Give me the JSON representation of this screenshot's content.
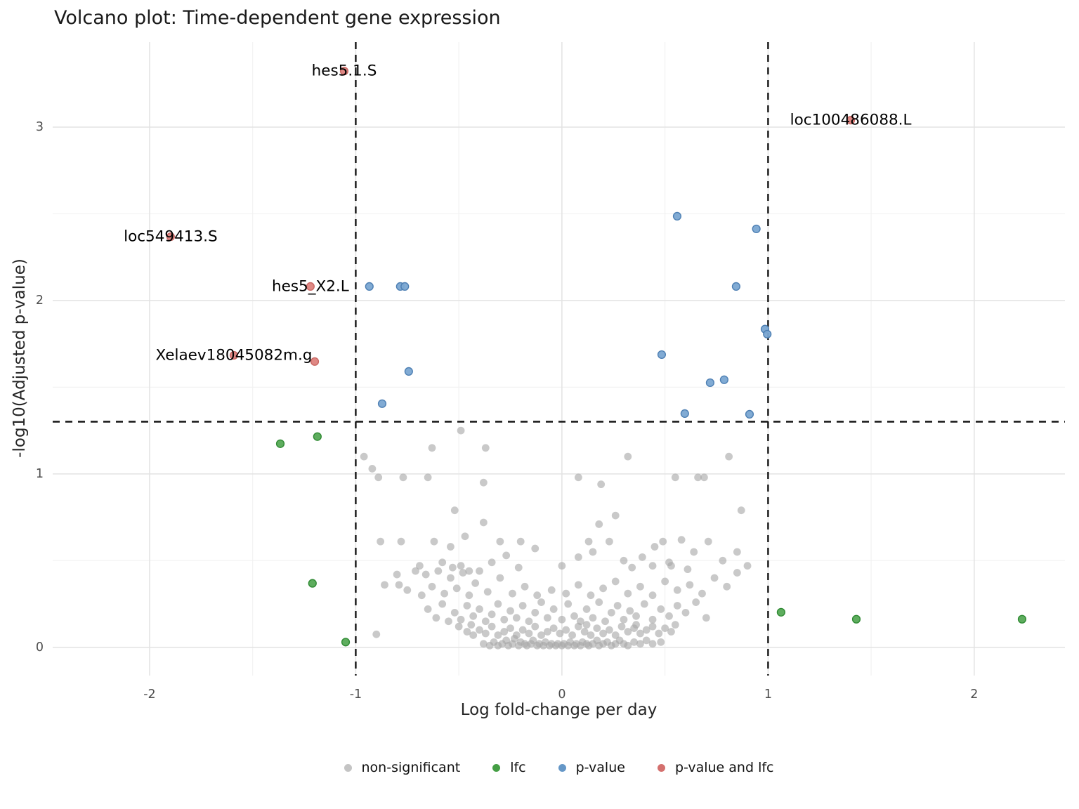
{
  "title": "Volcano plot: Time-dependent gene expression",
  "legend": {
    "items": [
      {
        "label": "non-significant",
        "color": "#c4c4c4"
      },
      {
        "label": "lfc",
        "color": "#449e44"
      },
      {
        "label": "p-value",
        "color": "#6597c7"
      },
      {
        "label": "p-value and lfc",
        "color": "#d4706e"
      }
    ]
  },
  "chart_data": {
    "type": "scatter",
    "title": "Volcano plot: Time-dependent gene expression",
    "xlabel": "Log fold-change per day",
    "ylabel": "-log10(Adjusted p-value)",
    "xlim": [
      -2.47,
      2.44
    ],
    "ylim": [
      -0.163,
      3.49
    ],
    "x_major_ticks": [
      -2,
      -1,
      0,
      1,
      2
    ],
    "y_major_ticks": [
      0,
      1,
      2,
      3
    ],
    "x_minor_ticks": [
      -1.5,
      -0.5,
      0.5,
      1.5
    ],
    "y_minor_ticks": [
      0.5,
      1.5,
      2.5
    ],
    "grid": true,
    "legend_position": "bottom",
    "grid_major_color": "#e3e3e3",
    "grid_minor_color": "#f2f2f2",
    "threshold_color": "#141414",
    "thresholds": {
      "hline_y": 1.301,
      "vlines_x": [
        -1,
        1
      ]
    },
    "point_labels": [
      {
        "text": "hes5.1.S",
        "x": -1.056,
        "y": 3.323
      },
      {
        "text": "loc100486088.L",
        "x": 1.401,
        "y": 3.04
      },
      {
        "text": "loc549413.S",
        "x": -1.898,
        "y": 2.368
      },
      {
        "text": "hes5_X2.L",
        "x": -1.22,
        "y": 2.081
      },
      {
        "text": "Xelaev18045082m.g",
        "x": -1.591,
        "y": 1.684
      }
    ],
    "series": [
      {
        "name": "non-significant",
        "color": "#a8a8a8",
        "stroke": "none",
        "opacity": 0.62,
        "points": [
          [
            -0.96,
            1.1
          ],
          [
            -0.92,
            1.03
          ],
          [
            -0.89,
            0.98
          ],
          [
            -0.77,
            0.98
          ],
          [
            -0.65,
            0.98
          ],
          [
            -0.63,
            1.15
          ],
          [
            -0.49,
            1.25
          ],
          [
            -0.37,
            1.15
          ],
          [
            -0.38,
            0.95
          ],
          [
            0.08,
            0.98
          ],
          [
            0.19,
            0.94
          ],
          [
            0.32,
            1.1
          ],
          [
            0.55,
            0.98
          ],
          [
            0.66,
            0.98
          ],
          [
            0.69,
            0.98
          ],
          [
            0.81,
            1.1
          ],
          [
            -0.52,
            0.79
          ],
          [
            -0.38,
            0.72
          ],
          [
            0.87,
            0.79
          ],
          [
            0.18,
            0.71
          ],
          [
            -0.47,
            0.64
          ],
          [
            0.26,
            0.76
          ],
          [
            -0.88,
            0.61
          ],
          [
            -0.78,
            0.61
          ],
          [
            -0.62,
            0.61
          ],
          [
            -0.54,
            0.58
          ],
          [
            -0.3,
            0.61
          ],
          [
            -0.2,
            0.61
          ],
          [
            0.13,
            0.61
          ],
          [
            0.23,
            0.61
          ],
          [
            0.45,
            0.58
          ],
          [
            0.49,
            0.61
          ],
          [
            0.58,
            0.62
          ],
          [
            0.71,
            0.61
          ],
          [
            -0.13,
            0.57
          ],
          [
            0.15,
            0.55
          ],
          [
            0.64,
            0.55
          ],
          [
            0.85,
            0.55
          ],
          [
            -0.69,
            0.47
          ],
          [
            -0.58,
            0.49
          ],
          [
            -0.53,
            0.46
          ],
          [
            -0.49,
            0.47
          ],
          [
            -0.45,
            0.44
          ],
          [
            -0.4,
            0.44
          ],
          [
            -0.27,
            0.53
          ],
          [
            0.0,
            0.47
          ],
          [
            0.3,
            0.5
          ],
          [
            0.39,
            0.52
          ],
          [
            0.52,
            0.49
          ],
          [
            0.53,
            0.47
          ],
          [
            0.78,
            0.5
          ],
          [
            0.9,
            0.47
          ],
          [
            -0.34,
            0.49
          ],
          [
            -0.21,
            0.46
          ],
          [
            0.08,
            0.52
          ],
          [
            0.34,
            0.46
          ],
          [
            0.61,
            0.45
          ],
          [
            0.44,
            0.47
          ],
          [
            -0.86,
            0.36
          ],
          [
            -0.79,
            0.36
          ],
          [
            -0.8,
            0.42
          ],
          [
            -0.75,
            0.33
          ],
          [
            -0.71,
            0.44
          ],
          [
            -0.68,
            0.3
          ],
          [
            -0.66,
            0.42
          ],
          [
            -0.63,
            0.35
          ],
          [
            -0.6,
            0.44
          ],
          [
            -0.57,
            0.31
          ],
          [
            -0.54,
            0.4
          ],
          [
            -0.51,
            0.34
          ],
          [
            -0.48,
            0.43
          ],
          [
            -0.45,
            0.3
          ],
          [
            -0.42,
            0.37
          ],
          [
            -0.36,
            0.32
          ],
          [
            -0.3,
            0.4
          ],
          [
            -0.24,
            0.31
          ],
          [
            -0.18,
            0.35
          ],
          [
            -0.12,
            0.3
          ],
          [
            -0.05,
            0.33
          ],
          [
            0.02,
            0.31
          ],
          [
            0.08,
            0.36
          ],
          [
            0.14,
            0.3
          ],
          [
            0.2,
            0.34
          ],
          [
            0.26,
            0.38
          ],
          [
            0.32,
            0.31
          ],
          [
            0.38,
            0.35
          ],
          [
            0.44,
            0.3
          ],
          [
            0.5,
            0.38
          ],
          [
            0.56,
            0.33
          ],
          [
            0.62,
            0.36
          ],
          [
            0.68,
            0.31
          ],
          [
            0.74,
            0.4
          ],
          [
            0.8,
            0.35
          ],
          [
            0.85,
            0.43
          ],
          [
            -0.65,
            0.22
          ],
          [
            -0.61,
            0.17
          ],
          [
            -0.58,
            0.25
          ],
          [
            -0.55,
            0.15
          ],
          [
            -0.52,
            0.2
          ],
          [
            -0.49,
            0.16
          ],
          [
            -0.46,
            0.24
          ],
          [
            -0.43,
            0.18
          ],
          [
            -0.4,
            0.22
          ],
          [
            -0.37,
            0.15
          ],
          [
            -0.34,
            0.19
          ],
          [
            -0.31,
            0.25
          ],
          [
            -0.28,
            0.16
          ],
          [
            -0.25,
            0.21
          ],
          [
            -0.22,
            0.17
          ],
          [
            -0.19,
            0.24
          ],
          [
            -0.16,
            0.15
          ],
          [
            -0.13,
            0.2
          ],
          [
            -0.1,
            0.26
          ],
          [
            -0.07,
            0.17
          ],
          [
            -0.04,
            0.22
          ],
          [
            0.0,
            0.16
          ],
          [
            0.03,
            0.25
          ],
          [
            0.06,
            0.18
          ],
          [
            0.09,
            0.15
          ],
          [
            0.12,
            0.22
          ],
          [
            0.15,
            0.17
          ],
          [
            0.18,
            0.26
          ],
          [
            0.21,
            0.15
          ],
          [
            0.24,
            0.2
          ],
          [
            0.27,
            0.24
          ],
          [
            0.3,
            0.16
          ],
          [
            0.33,
            0.21
          ],
          [
            0.36,
            0.18
          ],
          [
            0.4,
            0.25
          ],
          [
            0.44,
            0.16
          ],
          [
            0.48,
            0.22
          ],
          [
            0.52,
            0.18
          ],
          [
            0.56,
            0.24
          ],
          [
            0.6,
            0.2
          ],
          [
            0.65,
            0.26
          ],
          [
            0.7,
            0.17
          ],
          [
            -0.9,
            0.075
          ],
          [
            -0.5,
            0.12
          ],
          [
            -0.46,
            0.09
          ],
          [
            -0.43,
            0.07
          ],
          [
            -0.4,
            0.1
          ],
          [
            -0.37,
            0.08
          ],
          [
            -0.34,
            0.12
          ],
          [
            -0.31,
            0.07
          ],
          [
            -0.28,
            0.09
          ],
          [
            -0.25,
            0.11
          ],
          [
            -0.22,
            0.07
          ],
          [
            -0.19,
            0.1
          ],
          [
            -0.16,
            0.08
          ],
          [
            -0.13,
            0.12
          ],
          [
            -0.1,
            0.07
          ],
          [
            -0.07,
            0.09
          ],
          [
            -0.04,
            0.11
          ],
          [
            -0.01,
            0.08
          ],
          [
            0.02,
            0.1
          ],
          [
            0.05,
            0.07
          ],
          [
            0.08,
            0.12
          ],
          [
            0.11,
            0.09
          ],
          [
            0.14,
            0.07
          ],
          [
            0.17,
            0.11
          ],
          [
            0.2,
            0.08
          ],
          [
            0.23,
            0.1
          ],
          [
            0.26,
            0.07
          ],
          [
            0.29,
            0.12
          ],
          [
            0.32,
            0.09
          ],
          [
            0.35,
            0.11
          ],
          [
            0.38,
            0.08
          ],
          [
            0.41,
            0.1
          ],
          [
            0.44,
            0.12
          ],
          [
            0.47,
            0.08
          ],
          [
            0.5,
            0.11
          ],
          [
            0.53,
            0.09
          ],
          [
            0.55,
            0.13
          ],
          [
            -0.44,
            0.13
          ],
          [
            0.36,
            0.13
          ],
          [
            0.12,
            0.13
          ],
          [
            -0.38,
            0.02
          ],
          [
            -0.35,
            0.01
          ],
          [
            -0.33,
            0.03
          ],
          [
            -0.31,
            0.01
          ],
          [
            -0.29,
            0.02
          ],
          [
            -0.27,
            0.04
          ],
          [
            -0.26,
            0.01
          ],
          [
            -0.24,
            0.02
          ],
          [
            -0.23,
            0.05
          ],
          [
            -0.21,
            0.01
          ],
          [
            -0.2,
            0.03
          ],
          [
            -0.18,
            0.02
          ],
          [
            -0.17,
            0.01
          ],
          [
            -0.15,
            0.02
          ],
          [
            -0.14,
            0.04
          ],
          [
            -0.12,
            0.01
          ],
          [
            -0.11,
            0.02
          ],
          [
            -0.09,
            0.01
          ],
          [
            -0.08,
            0.03
          ],
          [
            -0.06,
            0.01
          ],
          [
            -0.05,
            0.02
          ],
          [
            -0.03,
            0.01
          ],
          [
            -0.02,
            0.02
          ],
          [
            0.0,
            0.01
          ],
          [
            0.01,
            0.02
          ],
          [
            0.03,
            0.01
          ],
          [
            0.04,
            0.03
          ],
          [
            0.06,
            0.01
          ],
          [
            0.07,
            0.02
          ],
          [
            0.09,
            0.01
          ],
          [
            0.1,
            0.03
          ],
          [
            0.12,
            0.02
          ],
          [
            0.13,
            0.01
          ],
          [
            0.15,
            0.02
          ],
          [
            0.17,
            0.04
          ],
          [
            0.18,
            0.01
          ],
          [
            0.2,
            0.02
          ],
          [
            0.22,
            0.03
          ],
          [
            0.24,
            0.01
          ],
          [
            0.26,
            0.02
          ],
          [
            0.28,
            0.04
          ],
          [
            0.3,
            0.02
          ],
          [
            0.32,
            0.01
          ],
          [
            0.35,
            0.03
          ],
          [
            0.38,
            0.02
          ],
          [
            0.41,
            0.04
          ],
          [
            0.44,
            0.02
          ],
          [
            0.48,
            0.03
          ]
        ]
      },
      {
        "name": "lfc",
        "color": "#4da44d",
        "stroke": "#2f8a33",
        "opacity": 0.9,
        "points": [
          [
            -1.366,
            1.174
          ],
          [
            -1.186,
            1.215
          ],
          [
            -1.21,
            0.369
          ],
          [
            -1.049,
            0.03
          ],
          [
            1.063,
            0.202
          ],
          [
            1.428,
            0.162
          ],
          [
            2.232,
            0.162
          ]
        ]
      },
      {
        "name": "p-value",
        "color": "#7aa6d2",
        "stroke": "#4d7fb3",
        "opacity": 0.95,
        "points": [
          [
            0.559,
            2.486
          ],
          [
            0.943,
            2.413
          ],
          [
            -0.934,
            2.081
          ],
          [
            -0.784,
            2.081
          ],
          [
            -0.762,
            2.081
          ],
          [
            0.845,
            2.081
          ],
          [
            0.985,
            1.835
          ],
          [
            0.996,
            1.806
          ],
          [
            0.484,
            1.688
          ],
          [
            -0.743,
            1.591
          ],
          [
            0.719,
            1.526
          ],
          [
            0.787,
            1.543
          ],
          [
            -0.872,
            1.405
          ],
          [
            0.596,
            1.348
          ],
          [
            0.91,
            1.344
          ]
        ]
      },
      {
        "name": "p-value and lfc",
        "color": "#d9736f",
        "stroke": "#c96763",
        "opacity": 0.85,
        "points": [
          [
            -1.056,
            3.323
          ],
          [
            1.401,
            3.04
          ],
          [
            -1.898,
            2.368
          ],
          [
            -1.22,
            2.081
          ],
          [
            -1.591,
            1.684
          ],
          [
            -1.199,
            1.648
          ]
        ]
      }
    ]
  }
}
